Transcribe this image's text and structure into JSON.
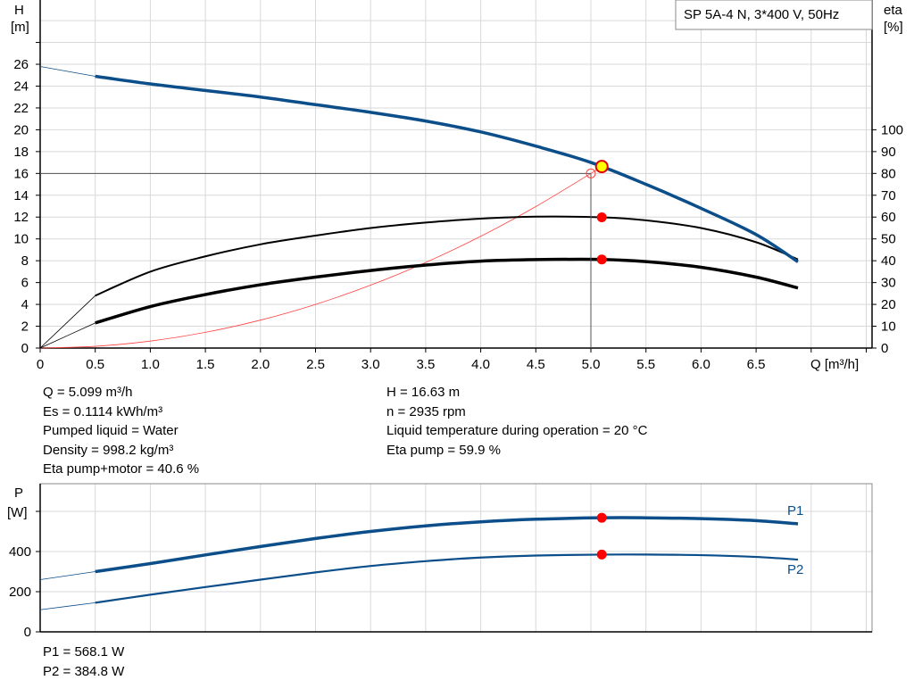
{
  "chart_data": [
    {
      "type": "line",
      "title": "SP 5A-4 N, 3*400 V, 50Hz",
      "xlabel": "Q [m³/h]",
      "ylabel": {
        "name": "H",
        "unit": "[m]"
      },
      "y2label": {
        "name": "eta",
        "unit": "[%]"
      },
      "xlim": [
        0,
        7.5
      ],
      "ylim": [
        0,
        30
      ],
      "y2lim": [
        0,
        150
      ],
      "grid": true,
      "x_ticks": [
        "0",
        "0.5",
        "1.0",
        "1.5",
        "2.0",
        "2.5",
        "3.0",
        "3.5",
        "4.0",
        "4.5",
        "5.0",
        "5.5",
        "6.0",
        "6.5"
      ],
      "y_ticks": [
        "0",
        "2",
        "4",
        "6",
        "8",
        "10",
        "12",
        "14",
        "16",
        "18",
        "20",
        "22",
        "24",
        "26"
      ],
      "y2_ticks": [
        "0",
        "10",
        "20",
        "30",
        "40",
        "50",
        "60",
        "70",
        "80",
        "90",
        "100"
      ],
      "series": [
        {
          "key": "H",
          "axis": "left",
          "color": "#0b4e8a",
          "x": [
            0,
            0.5,
            1.0,
            1.5,
            2.0,
            2.5,
            3.0,
            3.5,
            4.0,
            4.5,
            5.0,
            5.5,
            6.0,
            6.5,
            6.88
          ],
          "y": [
            25.8,
            24.9,
            24.2,
            23.6,
            23.0,
            22.3,
            21.6,
            20.8,
            19.8,
            18.5,
            17.0,
            15.0,
            12.8,
            10.4,
            7.9
          ]
        },
        {
          "key": "eta_pump",
          "axis": "right",
          "color": "#000000",
          "x": [
            0,
            0.5,
            1.0,
            1.5,
            2.0,
            2.5,
            3.0,
            3.5,
            4.0,
            4.5,
            5.1,
            5.5,
            6.0,
            6.5,
            6.88
          ],
          "y": [
            0,
            24,
            35,
            42,
            47.5,
            51.5,
            55,
            57.5,
            59.3,
            60.2,
            59.9,
            58.5,
            55,
            48.5,
            40.6
          ]
        },
        {
          "key": "eta_pump_motor",
          "axis": "right",
          "color": "#000000",
          "x": [
            0,
            0.5,
            1.0,
            1.5,
            2.0,
            2.5,
            3.0,
            3.5,
            4.0,
            4.5,
            5.1,
            5.5,
            6.0,
            6.5,
            6.88
          ],
          "y": [
            0,
            11.5,
            19,
            24.5,
            29,
            32.5,
            35.5,
            38,
            39.8,
            40.5,
            40.6,
            39.6,
            37,
            32.5,
            27.5
          ]
        },
        {
          "key": "system_curve",
          "axis": "left",
          "color": "#ff4040",
          "x": [
            0,
            0.5,
            1.0,
            1.5,
            2.0,
            2.5,
            3.0,
            3.5,
            4.0,
            4.5,
            5.0
          ],
          "y": [
            0,
            0.16,
            0.64,
            1.44,
            2.56,
            4.0,
            5.76,
            7.84,
            10.24,
            12.96,
            16.0
          ]
        }
      ],
      "duty_point": {
        "Q": 5.0,
        "H": 16.0
      },
      "operating_point": {
        "Q": 5.099,
        "H": 16.63,
        "eta_pump": 59.9,
        "eta_pump_motor": 40.6
      },
      "colors": {
        "curve": "#0b4e8a",
        "marker": "#ff0000",
        "op_fill": "#ffff00"
      }
    },
    {
      "type": "line",
      "ylabel": {
        "name": "P",
        "unit": "[W]"
      },
      "xlim": [
        0,
        7.5
      ],
      "ylim": [
        0,
        700
      ],
      "grid": true,
      "y_ticks": [
        "0",
        "200",
        "400"
      ],
      "series": [
        {
          "name": "P1",
          "color": "#0b4e8a",
          "x": [
            0,
            0.5,
            1.0,
            1.5,
            2.0,
            2.5,
            3.0,
            3.5,
            4.0,
            4.5,
            5.1,
            5.5,
            6.0,
            6.5,
            6.88
          ],
          "y": [
            260,
            300,
            340,
            383,
            425,
            465,
            500,
            528,
            548,
            561,
            568.1,
            568,
            564,
            554,
            538
          ]
        },
        {
          "name": "P2",
          "color": "#0b4e8a",
          "x": [
            0,
            0.5,
            1.0,
            1.5,
            2.0,
            2.5,
            3.0,
            3.5,
            4.0,
            4.5,
            5.1,
            5.5,
            6.0,
            6.5,
            6.88
          ],
          "y": [
            110,
            145,
            185,
            223,
            260,
            296,
            328,
            352,
            370,
            380,
            384.8,
            385,
            382,
            373,
            360
          ]
        }
      ],
      "operating_point": {
        "Q": 5.099,
        "P1": 568.1,
        "P2": 384.8
      }
    }
  ],
  "info": {
    "left": [
      "Q = 5.099 m³/h",
      "Es = 0.1114 kWh/m³",
      "Pumped liquid = Water",
      "Density = 998.2 kg/m³",
      "Eta pump+motor = 40.6 %"
    ],
    "right": [
      "H = 16.63 m",
      "n = 2935 rpm",
      "Liquid temperature during operation = 20 °C",
      "Eta pump = 59.9 %"
    ],
    "power": [
      "P1 = 568.1 W",
      "P2 = 384.8 W"
    ]
  }
}
